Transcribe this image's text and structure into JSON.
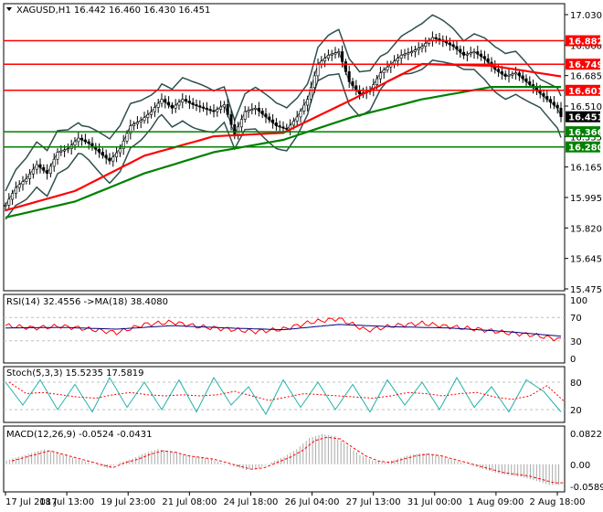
{
  "chart_data": [
    {
      "panel": "price",
      "type": "candlestick",
      "symbol": "XAGUSD,H1",
      "ohlc_header": [
        "16.442",
        "16.460",
        "16.430",
        "16.451"
      ],
      "ylim": [
        15.475,
        17.03
      ],
      "y_ticks": [
        "17.030",
        "16.860",
        "16.685",
        "16.510",
        "16.335",
        "16.165",
        "15.995",
        "15.820",
        "15.645",
        "15.475"
      ],
      "x_ticks": [
        "17 Jul 2017",
        "18 Jul 13:00",
        "19 Jul 23:00",
        "21 Jul 08:00",
        "24 Jul 18:00",
        "26 Jul 04:00",
        "27 Jul 13:00",
        "31 Jul 00:00",
        "1 Aug 09:00",
        "2 Aug 18:00"
      ],
      "levels": [
        {
          "value": 16.882,
          "label": "16.882",
          "color": "#ff0000"
        },
        {
          "value": 16.749,
          "label": "16.749",
          "color": "#ff0000"
        },
        {
          "value": 16.601,
          "label": "16.601",
          "color": "#ff0000"
        },
        {
          "value": 16.366,
          "label": "16.366",
          "color": "#008000"
        },
        {
          "value": 16.28,
          "label": "16.280",
          "color": "#008000"
        }
      ],
      "current_price": {
        "value": 16.451,
        "label": "16.451"
      },
      "close_path": [
        [
          0,
          15.95
        ],
        [
          3,
          16.05
        ],
        [
          6,
          16.1
        ],
        [
          9,
          16.18
        ],
        [
          12,
          16.13
        ],
        [
          15,
          16.25
        ],
        [
          18,
          16.27
        ],
        [
          21,
          16.33
        ],
        [
          24,
          16.3
        ],
        [
          27,
          16.25
        ],
        [
          30,
          16.2
        ],
        [
          33,
          16.27
        ],
        [
          36,
          16.4
        ],
        [
          39,
          16.43
        ],
        [
          42,
          16.48
        ],
        [
          45,
          16.55
        ],
        [
          48,
          16.5
        ],
        [
          51,
          16.55
        ],
        [
          54,
          16.52
        ],
        [
          57,
          16.5
        ],
        [
          60,
          16.48
        ],
        [
          63,
          16.52
        ],
        [
          66,
          16.35
        ],
        [
          69,
          16.48
        ],
        [
          72,
          16.5
        ],
        [
          75,
          16.45
        ],
        [
          78,
          16.4
        ],
        [
          81,
          16.38
        ],
        [
          84,
          16.45
        ],
        [
          87,
          16.55
        ],
        [
          90,
          16.75
        ],
        [
          93,
          16.8
        ],
        [
          96,
          16.82
        ],
        [
          99,
          16.65
        ],
        [
          102,
          16.58
        ],
        [
          105,
          16.6
        ],
        [
          108,
          16.7
        ],
        [
          111,
          16.75
        ],
        [
          114,
          16.8
        ],
        [
          117,
          16.82
        ],
        [
          120,
          16.85
        ],
        [
          123,
          16.9
        ],
        [
          126,
          16.88
        ],
        [
          129,
          16.85
        ],
        [
          132,
          16.8
        ],
        [
          135,
          16.82
        ],
        [
          138,
          16.78
        ],
        [
          141,
          16.72
        ],
        [
          144,
          16.68
        ],
        [
          147,
          16.7
        ],
        [
          150,
          16.65
        ],
        [
          153,
          16.6
        ],
        [
          156,
          16.55
        ],
        [
          159,
          16.5
        ],
        [
          160,
          16.451
        ]
      ],
      "series": [
        {
          "name": "",
          "color": "#008000",
          "values": [
            [
              0,
              15.88
            ],
            [
              20,
              15.97
            ],
            [
              40,
              16.13
            ],
            [
              60,
              16.25
            ],
            [
              80,
              16.32
            ],
            [
              100,
              16.45
            ],
            [
              120,
              16.55
            ],
            [
              140,
              16.62
            ],
            [
              160,
              16.62
            ]
          ]
        },
        {
          "name": "",
          "color": "#ff0000",
          "values": [
            [
              0,
              15.92
            ],
            [
              20,
              16.03
            ],
            [
              40,
              16.23
            ],
            [
              60,
              16.34
            ],
            [
              80,
              16.36
            ],
            [
              100,
              16.55
            ],
            [
              120,
              16.75
            ],
            [
              140,
              16.74
            ],
            [
              160,
              16.68
            ]
          ]
        }
      ]
    },
    {
      "panel": "rsi",
      "type": "line",
      "title": "RSI(14) 32.4556  ->MA(18) 38.4080",
      "ylim": [
        0,
        100
      ],
      "y_ticks": [
        "100",
        "70",
        "30",
        "0"
      ],
      "series": [
        {
          "name": "RSI(14)",
          "color": "#ff0000",
          "values": [
            [
              0,
              56
            ],
            [
              8,
              52
            ],
            [
              16,
              55
            ],
            [
              24,
              50
            ],
            [
              32,
              44
            ],
            [
              40,
              58
            ],
            [
              48,
              62
            ],
            [
              56,
              54
            ],
            [
              64,
              50
            ],
            [
              72,
              46
            ],
            [
              80,
              50
            ],
            [
              88,
              62
            ],
            [
              96,
              68
            ],
            [
              104,
              48
            ],
            [
              112,
              56
            ],
            [
              120,
              60
            ],
            [
              128,
              54
            ],
            [
              136,
              50
            ],
            [
              144,
              44
            ],
            [
              152,
              40
            ],
            [
              160,
              32
            ]
          ]
        },
        {
          "name": "MA(18)",
          "color": "#000080",
          "values": [
            [
              0,
              52
            ],
            [
              16,
              53
            ],
            [
              32,
              50
            ],
            [
              48,
              56
            ],
            [
              64,
              52
            ],
            [
              80,
              49
            ],
            [
              96,
              58
            ],
            [
              112,
              54
            ],
            [
              128,
              52
            ],
            [
              144,
              46
            ],
            [
              160,
              38
            ]
          ]
        }
      ]
    },
    {
      "panel": "stoch",
      "type": "line",
      "title": "Stoch(5,3,3) 15.5235 17.5819",
      "ylim": [
        0,
        100
      ],
      "y_ticks": [
        "80",
        "20"
      ],
      "series": [
        {
          "name": "",
          "color": "#20b2aa",
          "values": [
            [
              0,
              80
            ],
            [
              5,
              30
            ],
            [
              10,
              85
            ],
            [
              15,
              20
            ],
            [
              20,
              75
            ],
            [
              25,
              15
            ],
            [
              30,
              90
            ],
            [
              35,
              25
            ],
            [
              40,
              80
            ],
            [
              45,
              20
            ],
            [
              50,
              85
            ],
            [
              55,
              15
            ],
            [
              60,
              90
            ],
            [
              65,
              30
            ],
            [
              70,
              70
            ],
            [
              75,
              10
            ],
            [
              80,
              85
            ],
            [
              85,
              25
            ],
            [
              90,
              80
            ],
            [
              95,
              20
            ],
            [
              100,
              75
            ],
            [
              105,
              15
            ],
            [
              110,
              85
            ],
            [
              115,
              30
            ],
            [
              120,
              80
            ],
            [
              125,
              20
            ],
            [
              130,
              90
            ],
            [
              135,
              25
            ],
            [
              140,
              70
            ],
            [
              145,
              15
            ],
            [
              150,
              85
            ],
            [
              155,
              60
            ],
            [
              160,
              15
            ]
          ]
        }
      ]
    },
    {
      "panel": "macd",
      "type": "bar",
      "title": "MACD(12,26,9) -0.0524 -0.0431",
      "ylim": [
        -0.0589,
        0.0822
      ],
      "y_ticks": [
        "0.0822",
        "0.00",
        "-0.0589"
      ],
      "histogram": [
        0.01,
        0.02,
        0.03,
        0.04,
        0.03,
        0.02,
        0.01,
        0.0,
        -0.01,
        0.005,
        0.015,
        0.03,
        0.04,
        0.035,
        0.025,
        0.02,
        0.015,
        0.005,
        -0.005,
        -0.015,
        -0.01,
        0.005,
        0.02,
        0.04,
        0.07,
        0.08,
        0.075,
        0.05,
        0.025,
        0.01,
        0.005,
        0.015,
        0.025,
        0.03,
        0.025,
        0.015,
        0.005,
        -0.005,
        -0.015,
        -0.025,
        -0.03,
        -0.035,
        -0.045,
        -0.055
      ]
    }
  ]
}
